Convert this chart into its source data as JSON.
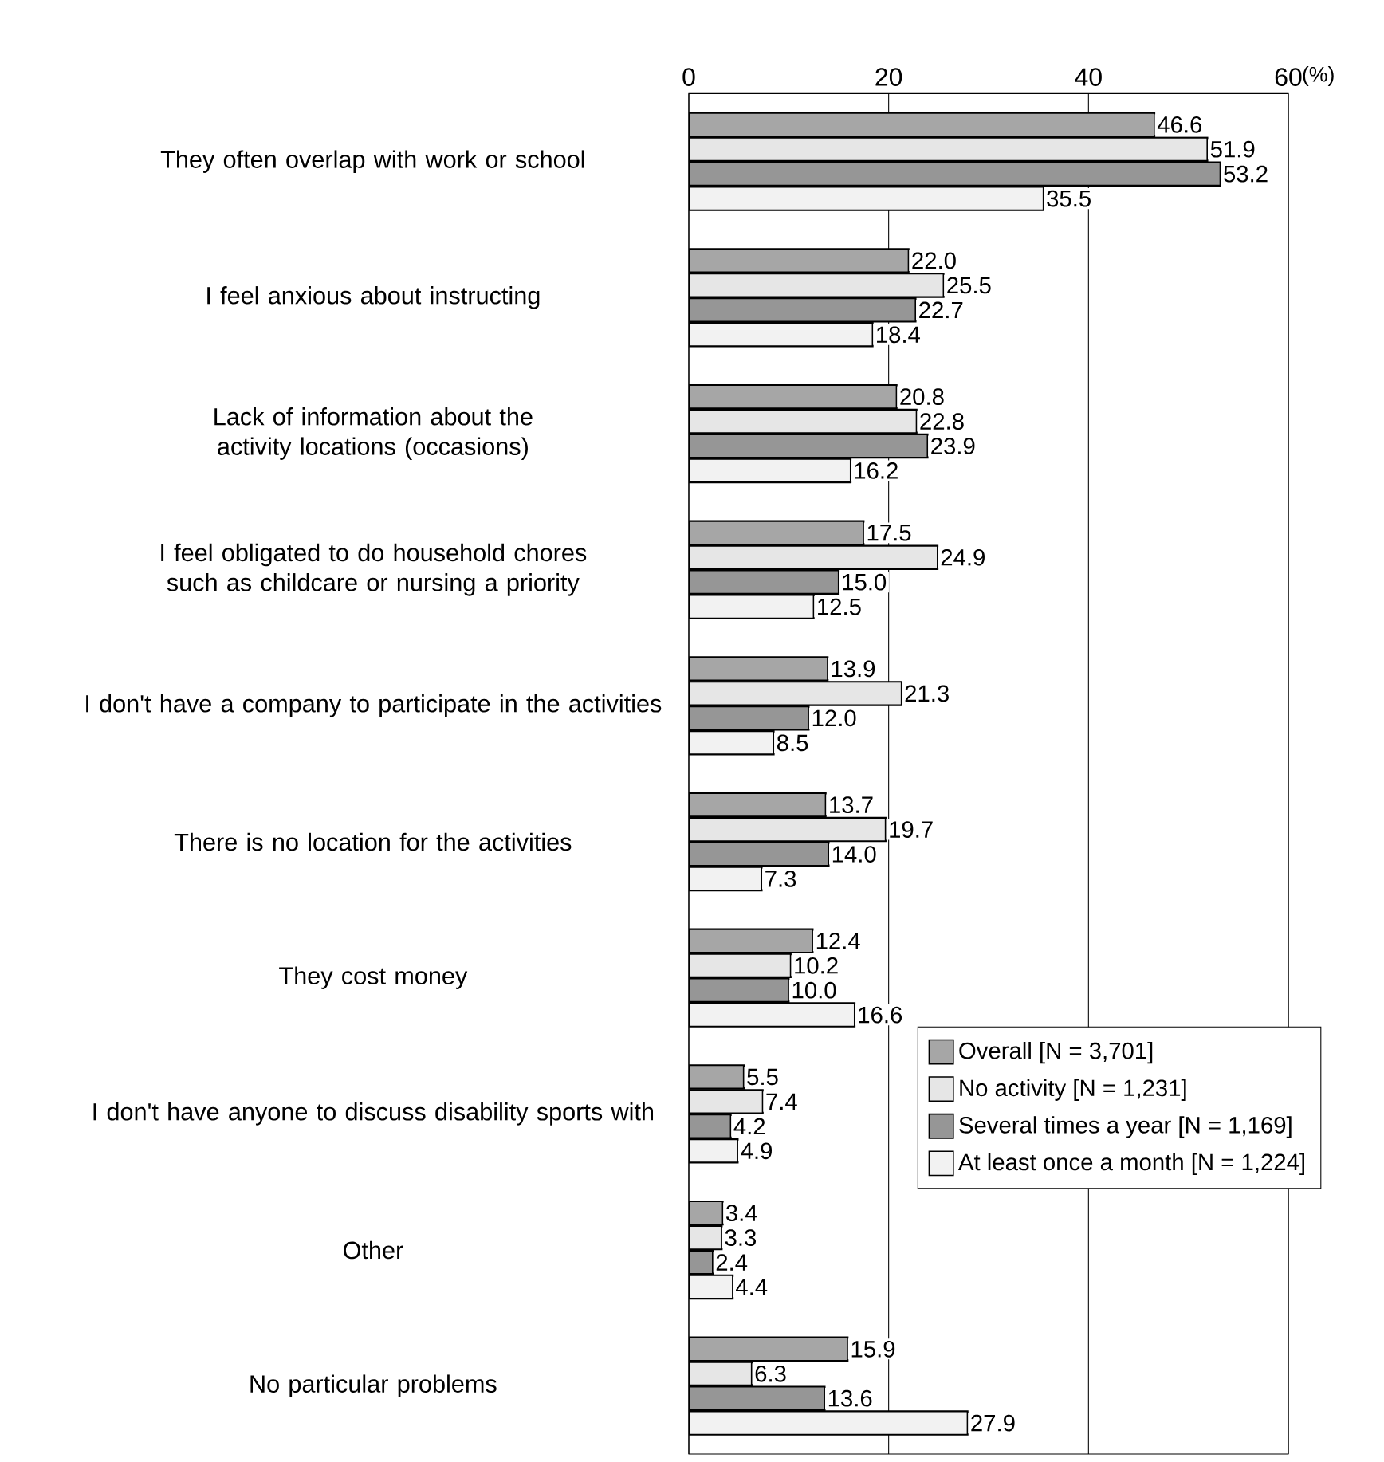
{
  "chart_data": {
    "type": "bar",
    "orientation": "horizontal",
    "xlabel": "(%)",
    "categories": [
      "They often overlap with work or school",
      "I feel anxious about instructing",
      "Lack of information about the activity locations (occasions)",
      "I feel obligated to do household chores such as childcare or nursing a priority",
      "I don't have a company to participate in the activities",
      "There is no location for the activities",
      "They cost money",
      "I don't have anyone to discuss disability sports with",
      "Other",
      "No particular problems"
    ],
    "series": [
      {
        "name": "Overall [N = 3,701]",
        "color": "#a6a6a6",
        "values": [
          46.6,
          22.0,
          20.8,
          17.5,
          13.9,
          13.7,
          12.4,
          5.5,
          3.4,
          15.9
        ],
        "value_labels": [
          "46.6",
          "22.0",
          "20.8",
          "17.5",
          "13.9",
          "13.7",
          "12.4",
          "5.5",
          "3.4",
          "15.9"
        ]
      },
      {
        "name": "No activity [N = 1,231]",
        "color": "#e6e6e6",
        "values": [
          51.9,
          25.5,
          22.8,
          24.9,
          21.3,
          19.7,
          10.2,
          7.4,
          3.3,
          6.3
        ],
        "value_labels": [
          "51.9",
          "25.5",
          "22.8",
          "24.9",
          "21.3",
          "19.7",
          "10.2",
          "7.4",
          "3.3",
          "6.3"
        ]
      },
      {
        "name": "Several times a year [N = 1,169]",
        "color": "#969696",
        "values": [
          53.2,
          22.7,
          23.9,
          15.0,
          12.0,
          14.0,
          10.0,
          4.2,
          2.4,
          13.6
        ],
        "value_labels": [
          "53.2",
          "22.7",
          "23.9",
          "15.0",
          "12.0",
          "14.0",
          "10.0",
          "4.2",
          "2.4",
          "13.6"
        ]
      },
      {
        "name": "At least once a month [N = 1,224]",
        "color": "#f2f2f2",
        "values": [
          35.5,
          18.4,
          16.2,
          12.5,
          8.5,
          7.3,
          16.6,
          4.9,
          4.4,
          27.9
        ],
        "value_labels": [
          "35.5",
          "18.4",
          "16.2",
          "12.5",
          "8.5",
          "7.3",
          "16.6",
          "4.9",
          "4.4",
          "27.9"
        ]
      }
    ],
    "xlim": [
      0,
      60
    ],
    "xticks": [
      0,
      20,
      40,
      60
    ],
    "grid": "x",
    "legend": "bottom right"
  }
}
